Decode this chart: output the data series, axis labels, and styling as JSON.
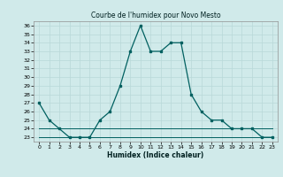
{
  "title": "Courbe de l'humidex pour Novo Mesto",
  "xlabel": "Humidex (Indice chaleur)",
  "x": [
    0,
    1,
    2,
    3,
    4,
    5,
    6,
    7,
    8,
    9,
    10,
    11,
    12,
    13,
    14,
    15,
    16,
    17,
    18,
    19,
    20,
    21,
    22,
    23
  ],
  "humidex": [
    27,
    25,
    24,
    23,
    23,
    23,
    25,
    26,
    29,
    33,
    36,
    33,
    33,
    34,
    34,
    28,
    26,
    25,
    25,
    24,
    24,
    24,
    23,
    23
  ],
  "flat_high": [
    24,
    24,
    24,
    24,
    24,
    24,
    24,
    24,
    24,
    24,
    24,
    24,
    24,
    24,
    24,
    24,
    24,
    24,
    24,
    24,
    24,
    24,
    24,
    24
  ],
  "flat_low": [
    23,
    23,
    23,
    23,
    23,
    23,
    23,
    23,
    23,
    23,
    23,
    23,
    23,
    23,
    23,
    23,
    23,
    23,
    23,
    23,
    23,
    23,
    23,
    23
  ],
  "line_color": "#006060",
  "bg_color": "#d0eaea",
  "grid_color": "#b8d8d8",
  "ylim": [
    22.5,
    36.5
  ],
  "xlim": [
    -0.5,
    23.5
  ],
  "yticks": [
    23,
    24,
    25,
    26,
    27,
    28,
    29,
    30,
    31,
    32,
    33,
    34,
    35,
    36
  ],
  "xticks": [
    0,
    1,
    2,
    3,
    4,
    5,
    6,
    7,
    8,
    9,
    10,
    11,
    12,
    13,
    14,
    15,
    16,
    17,
    18,
    19,
    20,
    21,
    22,
    23
  ]
}
